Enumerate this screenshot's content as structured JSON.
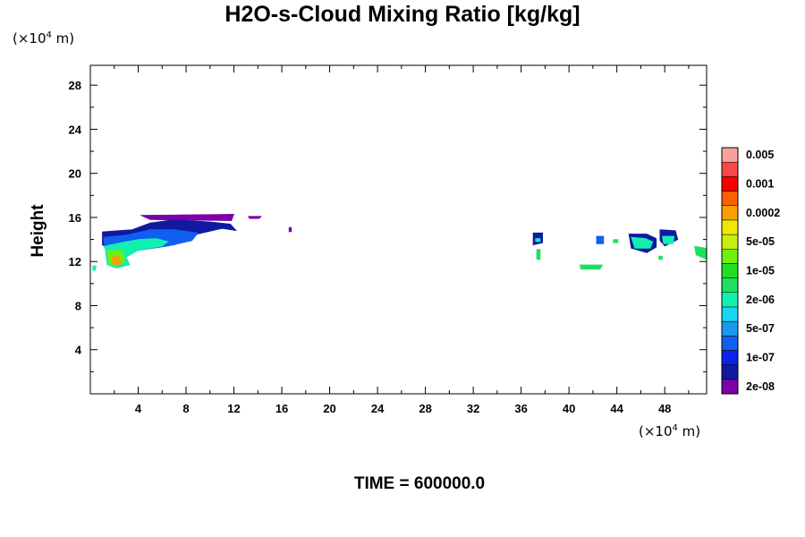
{
  "chart_data": {
    "type": "heatmap",
    "title": "H2O-s-Cloud Mixing Ratio [kg/kg]",
    "ylabel": "Height",
    "xunit_prefix": "(×10",
    "xunit_exp": "4",
    "xunit_suffix": " m)",
    "yunit_prefix": "(×10",
    "yunit_exp": "4",
    "yunit_suffix": " m)",
    "xlim": [
      0,
      51.5
    ],
    "ylim": [
      0,
      29.8
    ],
    "xticks": [
      4,
      8,
      12,
      16,
      20,
      24,
      28,
      32,
      36,
      40,
      44,
      48
    ],
    "yticks": [
      4,
      8,
      12,
      16,
      20,
      24,
      28
    ],
    "colorbar": {
      "colors": [
        "#7b00a8",
        "#0f1aa0",
        "#0a23e6",
        "#1060f0",
        "#1898ef",
        "#16d8f0",
        "#12f0b0",
        "#1ee060",
        "#1ee020",
        "#70ee10",
        "#c8ee10",
        "#f0e800",
        "#f8a000",
        "#f86000",
        "#f80000",
        "#f84848",
        "#f8a0a0"
      ],
      "labels": [
        "2e-08",
        "1e-07",
        "5e-07",
        "2e-06",
        "1e-05",
        "5e-05",
        "0.0002",
        "0.001",
        "0.005"
      ]
    },
    "regions": [
      {
        "level": 0,
        "points": [
          [
            4.2,
            16.2
          ],
          [
            12.0,
            16.3
          ],
          [
            11.8,
            15.7
          ],
          [
            5.0,
            15.8
          ]
        ]
      },
      {
        "level": 1,
        "points": [
          [
            1.0,
            14.7
          ],
          [
            3.5,
            14.9
          ],
          [
            5.0,
            15.5
          ],
          [
            7.0,
            15.8
          ],
          [
            10.0,
            15.6
          ],
          [
            11.7,
            15.4
          ],
          [
            12.2,
            14.8
          ],
          [
            11.0,
            15.0
          ],
          [
            9.0,
            14.5
          ],
          [
            7.0,
            13.5
          ],
          [
            4.5,
            13.3
          ],
          [
            2.0,
            13.0
          ],
          [
            1.0,
            13.5
          ]
        ]
      },
      {
        "level": 3,
        "points": [
          [
            1.1,
            14.2
          ],
          [
            3.0,
            14.4
          ],
          [
            5.0,
            14.9
          ],
          [
            7.0,
            14.9
          ],
          [
            9.0,
            14.6
          ],
          [
            8.5,
            13.9
          ],
          [
            6.5,
            13.4
          ],
          [
            4.0,
            13.0
          ],
          [
            2.0,
            12.7
          ],
          [
            1.2,
            13.2
          ]
        ]
      },
      {
        "level": 6,
        "points": [
          [
            1.2,
            13.4
          ],
          [
            2.5,
            13.7
          ],
          [
            4.0,
            14.0
          ],
          [
            5.5,
            14.1
          ],
          [
            6.5,
            13.8
          ],
          [
            6.0,
            13.4
          ],
          [
            4.0,
            13.0
          ],
          [
            3.0,
            12.4
          ],
          [
            3.3,
            11.7
          ],
          [
            2.2,
            11.4
          ],
          [
            1.4,
            11.7
          ]
        ]
      },
      {
        "level": 9,
        "points": [
          [
            1.4,
            13.0
          ],
          [
            2.7,
            13.0
          ],
          [
            2.9,
            12.0
          ],
          [
            2.1,
            11.6
          ],
          [
            1.5,
            11.9
          ]
        ]
      },
      {
        "level": 12,
        "points": [
          [
            1.7,
            12.4
          ],
          [
            2.4,
            12.5
          ],
          [
            2.6,
            11.8
          ],
          [
            2.0,
            11.6
          ]
        ]
      },
      {
        "level": 6,
        "points": [
          [
            0.2,
            11.6
          ],
          [
            0.5,
            11.6
          ],
          [
            0.4,
            11.2
          ],
          [
            0.2,
            11.2
          ]
        ]
      },
      {
        "level": 0,
        "points": [
          [
            13.2,
            16.1
          ],
          [
            14.3,
            16.1
          ],
          [
            14.1,
            15.9
          ],
          [
            13.3,
            15.9
          ]
        ]
      },
      {
        "level": 0,
        "points": [
          [
            16.6,
            15.1
          ],
          [
            16.8,
            15.1
          ],
          [
            16.8,
            14.7
          ],
          [
            16.6,
            14.7
          ]
        ]
      },
      {
        "level": 1,
        "points": [
          [
            37.0,
            14.6
          ],
          [
            37.8,
            14.6
          ],
          [
            37.8,
            13.7
          ],
          [
            37.0,
            13.5
          ]
        ]
      },
      {
        "level": 6,
        "points": [
          [
            37.2,
            14.1
          ],
          [
            37.6,
            14.1
          ],
          [
            37.6,
            13.8
          ],
          [
            37.2,
            13.8
          ]
        ]
      },
      {
        "level": 7,
        "points": [
          [
            37.3,
            13.1
          ],
          [
            37.6,
            13.1
          ],
          [
            37.6,
            12.2
          ],
          [
            37.3,
            12.2
          ]
        ]
      },
      {
        "level": 7,
        "points": [
          [
            40.9,
            11.7
          ],
          [
            42.8,
            11.7
          ],
          [
            42.6,
            11.3
          ],
          [
            41.0,
            11.3
          ]
        ]
      },
      {
        "level": 3,
        "points": [
          [
            42.3,
            14.3
          ],
          [
            42.9,
            14.3
          ],
          [
            42.9,
            13.6
          ],
          [
            42.3,
            13.6
          ]
        ]
      },
      {
        "level": 7,
        "points": [
          [
            43.7,
            14.0
          ],
          [
            44.1,
            14.0
          ],
          [
            44.1,
            13.7
          ],
          [
            43.7,
            13.7
          ]
        ]
      },
      {
        "level": 1,
        "points": [
          [
            45.0,
            14.5
          ],
          [
            46.5,
            14.5
          ],
          [
            47.3,
            14.1
          ],
          [
            47.3,
            13.3
          ],
          [
            46.5,
            12.8
          ],
          [
            45.2,
            13.2
          ]
        ]
      },
      {
        "level": 6,
        "points": [
          [
            45.2,
            14.2
          ],
          [
            46.4,
            14.1
          ],
          [
            47.0,
            13.8
          ],
          [
            46.8,
            13.2
          ],
          [
            45.5,
            13.2
          ]
        ]
      },
      {
        "level": 1,
        "points": [
          [
            47.6,
            14.9
          ],
          [
            48.9,
            14.8
          ],
          [
            49.1,
            14.0
          ],
          [
            48.0,
            13.4
          ],
          [
            47.6,
            13.9
          ]
        ]
      },
      {
        "level": 6,
        "points": [
          [
            47.8,
            14.3
          ],
          [
            48.8,
            14.3
          ],
          [
            48.7,
            13.6
          ],
          [
            47.9,
            13.6
          ]
        ]
      },
      {
        "level": 7,
        "points": [
          [
            50.5,
            13.4
          ],
          [
            51.5,
            13.2
          ],
          [
            51.5,
            12.2
          ],
          [
            50.6,
            12.6
          ]
        ]
      },
      {
        "level": 7,
        "points": [
          [
            47.5,
            12.5
          ],
          [
            47.8,
            12.5
          ],
          [
            47.8,
            12.2
          ],
          [
            47.5,
            12.2
          ]
        ]
      }
    ]
  },
  "footer": {
    "time_label": "TIME = 600000.0"
  }
}
